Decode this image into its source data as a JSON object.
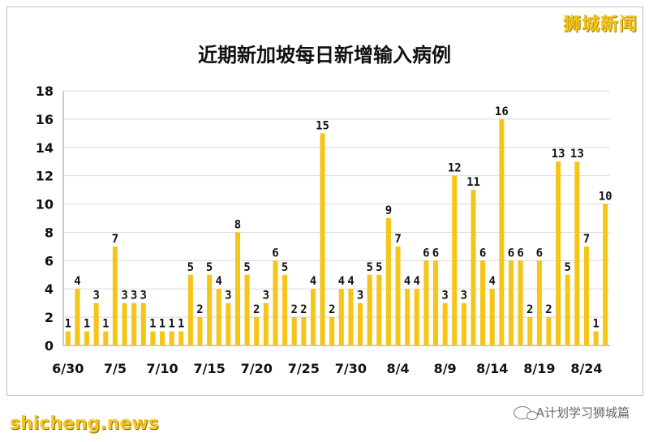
{
  "brand_text": "狮城新闻",
  "watermark_left": "shicheng.news",
  "watermark_right": "A计划学习狮城篇",
  "colors": {
    "bar": "#f5c518",
    "grid": "#d9d9d9",
    "axis": "#999999",
    "text": "#111111"
  },
  "chart_data": {
    "type": "bar",
    "title": "近期新加坡每日新增输入病例",
    "xlabel": "",
    "ylabel": "",
    "ylim": [
      0,
      18
    ],
    "yticks": [
      0,
      2,
      4,
      6,
      8,
      10,
      12,
      14,
      16,
      18
    ],
    "grid": true,
    "categories": [
      "6/30",
      "7/1",
      "7/2",
      "7/3",
      "7/4",
      "7/5",
      "7/6",
      "7/7",
      "7/8",
      "7/9",
      "7/10",
      "7/11",
      "7/12",
      "7/13",
      "7/14",
      "7/15",
      "7/16",
      "7/17",
      "7/18",
      "7/19",
      "7/20",
      "7/21",
      "7/22",
      "7/23",
      "7/24",
      "7/25",
      "7/26",
      "7/27",
      "7/28",
      "7/29",
      "7/30",
      "7/31",
      "8/1",
      "8/2",
      "8/3",
      "8/4",
      "8/5",
      "8/6",
      "8/7",
      "8/8",
      "8/9",
      "8/10",
      "8/11",
      "8/12",
      "8/13",
      "8/14",
      "8/15",
      "8/16",
      "8/17",
      "8/18",
      "8/19",
      "8/20",
      "8/21",
      "8/22",
      "8/23",
      "8/24",
      "8/25",
      "8/26"
    ],
    "visible_tick_labels": [
      "6/30",
      "7/5",
      "7/10",
      "7/15",
      "7/20",
      "7/25",
      "7/30",
      "8/4",
      "8/9",
      "8/14",
      "8/19",
      "8/24"
    ],
    "values": [
      1,
      4,
      1,
      3,
      1,
      7,
      3,
      3,
      3,
      1,
      1,
      1,
      1,
      5,
      2,
      5,
      4,
      3,
      8,
      5,
      2,
      3,
      6,
      5,
      2,
      2,
      4,
      15,
      2,
      4,
      4,
      3,
      5,
      5,
      9,
      7,
      4,
      4,
      6,
      6,
      3,
      12,
      3,
      11,
      6,
      4,
      16,
      6,
      6,
      2,
      6,
      2,
      13,
      5,
      13,
      7,
      1,
      10
    ]
  }
}
